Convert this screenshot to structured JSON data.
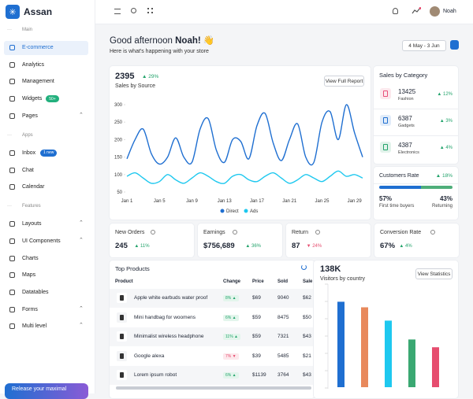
{
  "sidebar": {
    "brand": "Assan",
    "sections": [
      {
        "label": "Main",
        "items": [
          {
            "label": "E-commerce",
            "active": true
          },
          {
            "label": "Analytics"
          },
          {
            "label": "Management"
          },
          {
            "label": "Widgets",
            "badge": "50+"
          },
          {
            "label": "Pages",
            "expandable": true
          }
        ]
      },
      {
        "label": "Apps",
        "items": [
          {
            "label": "Inbox",
            "badge": "1 new"
          },
          {
            "label": "Chat"
          },
          {
            "label": "Calendar"
          }
        ]
      },
      {
        "label": "Features",
        "items": [
          {
            "label": "Layouts",
            "expandable": true
          },
          {
            "label": "UI Components",
            "expandable": true
          },
          {
            "label": "Charts"
          },
          {
            "label": "Maps"
          },
          {
            "label": "Datatables"
          },
          {
            "label": "Forms",
            "expandable": true
          },
          {
            "label": "Multi level",
            "expandable": true
          }
        ]
      }
    ],
    "promo": "Release your maximal"
  },
  "topbar": {
    "user": "Noah"
  },
  "greeting": {
    "text": "Good afternoon",
    "name": "Noah!",
    "emoji": "👋",
    "subtitle": "Here is what's happening with your store",
    "date_range": "4 May - 3 Jun"
  },
  "sales": {
    "total": "2395",
    "change": "29%",
    "label": "Sales by Source",
    "button": "View Full Report"
  },
  "categories": {
    "title": "Sales by Category",
    "items": [
      {
        "value": "13425",
        "name": "Fashion",
        "change": "12%",
        "color": "#e94f7a"
      },
      {
        "value": "6387",
        "name": "Gadgets",
        "change": "3%",
        "color": "#1f6fd1"
      },
      {
        "value": "4387",
        "name": "Electronics",
        "change": "4%",
        "color": "#22a36b"
      }
    ]
  },
  "customers": {
    "title": "Customers Rate",
    "change": "18%",
    "first": {
      "value": 57,
      "label": "57%"
    },
    "returning": {
      "value": 43,
      "label": "43%"
    },
    "first_label": "First time buyers",
    "returning_label": "Returning"
  },
  "stats": [
    {
      "title": "New Orders",
      "value": "245",
      "change": "11%",
      "trend": "up"
    },
    {
      "title": "Earnings",
      "value": "$756,689",
      "change": "36%",
      "trend": "up"
    },
    {
      "title": "Return",
      "value": "87",
      "change": "24%",
      "trend": "down"
    },
    {
      "title": "Conversion Rate",
      "value": "67%",
      "change": "4%",
      "trend": "up"
    }
  ],
  "products": {
    "title": "Top Products",
    "columns": [
      "Product",
      "Change",
      "Price",
      "Sold",
      "Sale"
    ],
    "rows": [
      [
        "Apple white earbuds water proof",
        "8%",
        "$69",
        "9040",
        "$62"
      ],
      [
        "Mini handbag for woomens",
        "6%",
        "$59",
        "8475",
        "$50"
      ],
      [
        "Minimalist wireless headphone",
        "11%",
        "$59",
        "7321",
        "$43"
      ],
      [
        "Google alexa",
        "7%",
        "$39",
        "5485",
        "$21"
      ],
      [
        "Lorem ipsum robot",
        "6%",
        "$1139",
        "3764",
        "$43"
      ]
    ],
    "trends": [
      "up",
      "up",
      "up",
      "down",
      "up"
    ]
  },
  "visitors": {
    "total": "138K",
    "label": "Visitors by country",
    "button": "View Statistics"
  },
  "chart_data": [
    {
      "type": "line",
      "categories": [
        "Jan 1",
        null,
        null,
        null,
        "Jan 5",
        null,
        null,
        null,
        "Jan 9",
        null,
        null,
        null,
        "Jan 13",
        null,
        null,
        null,
        "Jan 17",
        null,
        null,
        null,
        "Jan 21",
        null,
        null,
        null,
        "Jan 25",
        null,
        null,
        null,
        "Jan 29",
        null
      ],
      "series": [
        {
          "name": "Direct",
          "color": "#1f6fd1",
          "values": [
            145,
            200,
            230,
            160,
            130,
            150,
            205,
            150,
            135,
            230,
            260,
            170,
            135,
            200,
            195,
            145,
            240,
            275,
            190,
            140,
            200,
            245,
            150,
            135,
            250,
            280,
            200,
            300,
            220,
            150
          ]
        },
        {
          "name": "Ads",
          "color": "#1ec8ef",
          "values": [
            95,
            105,
            90,
            75,
            80,
            100,
            85,
            75,
            90,
            105,
            95,
            80,
            75,
            95,
            100,
            85,
            80,
            95,
            105,
            90,
            75,
            85,
            100,
            90,
            80,
            95,
            110,
            95,
            100,
            90
          ]
        }
      ],
      "ylim": [
        50,
        300
      ],
      "yticks": [
        50,
        100,
        150,
        200,
        250,
        300
      ],
      "grid": false,
      "legend": "bottom"
    },
    {
      "type": "bar",
      "values": [
        77,
        72,
        60,
        43,
        36
      ],
      "colors": [
        "#1f6fd1",
        "#e8895c",
        "#1ec8ef",
        "#3aa872",
        "#e64d6f"
      ],
      "ylim": [
        0,
        100
      ]
    }
  ]
}
